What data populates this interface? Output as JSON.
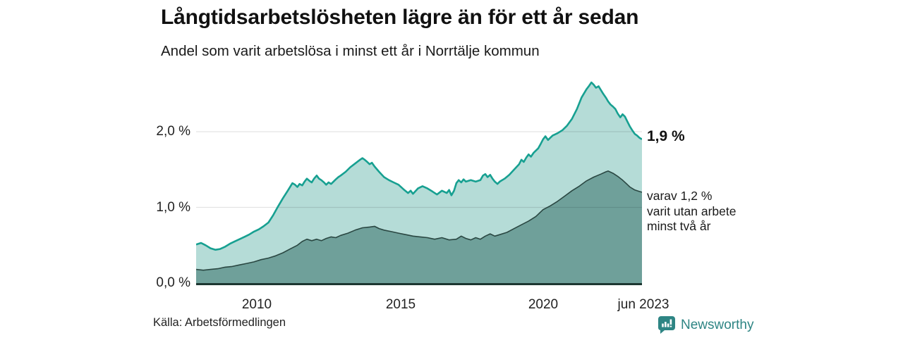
{
  "header": {
    "title": "Långtidsarbetslösheten lägre än för ett år sedan",
    "subtitle": "Andel som varit arbetslösa i minst ett år i Norrtälje kommun"
  },
  "axes": {
    "y_ticks": [
      "2,0 %",
      "1,0 %",
      "0,0 %"
    ],
    "x_ticks": [
      "2010",
      "2015",
      "2020",
      "jun 2023"
    ]
  },
  "annotations": {
    "series1_end": "1,9 %",
    "series2_end_lines": [
      "varav 1,2 %",
      "varit utan arbete",
      "minst två år"
    ]
  },
  "footer": {
    "source": "Källa: Arbetsförmedlingen",
    "brand": "Newsworthy"
  },
  "colors": {
    "series1_line": "#17a091",
    "series1_fill": "#b5dcd7",
    "series2_line": "#2a4742",
    "series2_fill": "#6fa09a",
    "grid": "rgba(0,0,0,0.11)",
    "axis_line": "#1c3631",
    "brand_teal": "#2e8584"
  },
  "chart_data": {
    "type": "area",
    "title": "Långtidsarbetslösheten lägre än för ett år sedan",
    "subtitle": "Andel som varit arbetslösa i minst ett år i Norrtälje kommun",
    "unit": "%",
    "x_range": [
      2008,
      2023.42
    ],
    "y_range": [
      0,
      2.8
    ],
    "y_gridlines": [
      1.0,
      2.0
    ],
    "x_tick_positions": [
      2010,
      2015,
      2020,
      2023.42
    ],
    "legend_position": "end-of-line-labels",
    "series": [
      {
        "name": "Andel arbetslösa minst ett år",
        "end_value": 1.9,
        "points": [
          [
            2008.0,
            0.51
          ],
          [
            2008.17,
            0.53
          ],
          [
            2008.33,
            0.5
          ],
          [
            2008.5,
            0.46
          ],
          [
            2008.67,
            0.44
          ],
          [
            2008.83,
            0.45
          ],
          [
            2009.0,
            0.48
          ],
          [
            2009.17,
            0.52
          ],
          [
            2009.33,
            0.55
          ],
          [
            2009.5,
            0.58
          ],
          [
            2009.67,
            0.61
          ],
          [
            2009.83,
            0.64
          ],
          [
            2010.0,
            0.68
          ],
          [
            2010.17,
            0.71
          ],
          [
            2010.33,
            0.75
          ],
          [
            2010.5,
            0.8
          ],
          [
            2010.67,
            0.9
          ],
          [
            2010.83,
            1.01
          ],
          [
            2011.0,
            1.12
          ],
          [
            2011.17,
            1.22
          ],
          [
            2011.33,
            1.32
          ],
          [
            2011.42,
            1.3
          ],
          [
            2011.5,
            1.27
          ],
          [
            2011.58,
            1.31
          ],
          [
            2011.67,
            1.29
          ],
          [
            2011.75,
            1.34
          ],
          [
            2011.83,
            1.38
          ],
          [
            2011.92,
            1.35
          ],
          [
            2012.0,
            1.33
          ],
          [
            2012.08,
            1.38
          ],
          [
            2012.17,
            1.42
          ],
          [
            2012.25,
            1.38
          ],
          [
            2012.33,
            1.36
          ],
          [
            2012.42,
            1.33
          ],
          [
            2012.5,
            1.3
          ],
          [
            2012.58,
            1.33
          ],
          [
            2012.67,
            1.31
          ],
          [
            2012.75,
            1.34
          ],
          [
            2012.83,
            1.37
          ],
          [
            2012.92,
            1.4
          ],
          [
            2013.0,
            1.42
          ],
          [
            2013.17,
            1.47
          ],
          [
            2013.33,
            1.53
          ],
          [
            2013.5,
            1.58
          ],
          [
            2013.67,
            1.63
          ],
          [
            2013.75,
            1.65
          ],
          [
            2013.83,
            1.63
          ],
          [
            2013.92,
            1.6
          ],
          [
            2014.0,
            1.57
          ],
          [
            2014.08,
            1.59
          ],
          [
            2014.17,
            1.54
          ],
          [
            2014.33,
            1.47
          ],
          [
            2014.5,
            1.4
          ],
          [
            2014.67,
            1.36
          ],
          [
            2014.83,
            1.33
          ],
          [
            2015.0,
            1.3
          ],
          [
            2015.17,
            1.24
          ],
          [
            2015.33,
            1.19
          ],
          [
            2015.42,
            1.22
          ],
          [
            2015.5,
            1.18
          ],
          [
            2015.67,
            1.25
          ],
          [
            2015.83,
            1.28
          ],
          [
            2016.0,
            1.25
          ],
          [
            2016.17,
            1.21
          ],
          [
            2016.33,
            1.17
          ],
          [
            2016.5,
            1.22
          ],
          [
            2016.67,
            1.19
          ],
          [
            2016.75,
            1.23
          ],
          [
            2016.83,
            1.16
          ],
          [
            2016.92,
            1.22
          ],
          [
            2017.0,
            1.32
          ],
          [
            2017.08,
            1.36
          ],
          [
            2017.17,
            1.33
          ],
          [
            2017.25,
            1.37
          ],
          [
            2017.33,
            1.34
          ],
          [
            2017.5,
            1.36
          ],
          [
            2017.67,
            1.34
          ],
          [
            2017.83,
            1.36
          ],
          [
            2017.92,
            1.42
          ],
          [
            2018.0,
            1.44
          ],
          [
            2018.08,
            1.4
          ],
          [
            2018.17,
            1.43
          ],
          [
            2018.25,
            1.38
          ],
          [
            2018.33,
            1.34
          ],
          [
            2018.42,
            1.31
          ],
          [
            2018.5,
            1.34
          ],
          [
            2018.67,
            1.38
          ],
          [
            2018.83,
            1.43
          ],
          [
            2019.0,
            1.5
          ],
          [
            2019.17,
            1.57
          ],
          [
            2019.25,
            1.63
          ],
          [
            2019.33,
            1.6
          ],
          [
            2019.42,
            1.66
          ],
          [
            2019.5,
            1.7
          ],
          [
            2019.58,
            1.67
          ],
          [
            2019.67,
            1.72
          ],
          [
            2019.83,
            1.78
          ],
          [
            2019.92,
            1.84
          ],
          [
            2020.0,
            1.9
          ],
          [
            2020.08,
            1.94
          ],
          [
            2020.17,
            1.89
          ],
          [
            2020.25,
            1.92
          ],
          [
            2020.33,
            1.95
          ],
          [
            2020.5,
            1.98
          ],
          [
            2020.67,
            2.02
          ],
          [
            2020.83,
            2.08
          ],
          [
            2021.0,
            2.17
          ],
          [
            2021.17,
            2.3
          ],
          [
            2021.33,
            2.45
          ],
          [
            2021.5,
            2.56
          ],
          [
            2021.58,
            2.6
          ],
          [
            2021.67,
            2.65
          ],
          [
            2021.75,
            2.62
          ],
          [
            2021.83,
            2.58
          ],
          [
            2021.92,
            2.6
          ],
          [
            2022.0,
            2.55
          ],
          [
            2022.08,
            2.5
          ],
          [
            2022.17,
            2.45
          ],
          [
            2022.25,
            2.4
          ],
          [
            2022.33,
            2.36
          ],
          [
            2022.42,
            2.33
          ],
          [
            2022.5,
            2.3
          ],
          [
            2022.58,
            2.24
          ],
          [
            2022.67,
            2.19
          ],
          [
            2022.75,
            2.23
          ],
          [
            2022.83,
            2.2
          ],
          [
            2022.92,
            2.13
          ],
          [
            2023.0,
            2.07
          ],
          [
            2023.08,
            2.02
          ],
          [
            2023.17,
            1.97
          ],
          [
            2023.25,
            1.95
          ],
          [
            2023.33,
            1.92
          ],
          [
            2023.42,
            1.9
          ]
        ]
      },
      {
        "name": "varav utan arbete minst två år",
        "end_value": 1.2,
        "points": [
          [
            2008.0,
            0.18
          ],
          [
            2008.25,
            0.17
          ],
          [
            2008.5,
            0.18
          ],
          [
            2008.75,
            0.19
          ],
          [
            2009.0,
            0.21
          ],
          [
            2009.25,
            0.22
          ],
          [
            2009.5,
            0.24
          ],
          [
            2009.75,
            0.26
          ],
          [
            2010.0,
            0.28
          ],
          [
            2010.25,
            0.31
          ],
          [
            2010.5,
            0.33
          ],
          [
            2010.75,
            0.36
          ],
          [
            2011.0,
            0.4
          ],
          [
            2011.25,
            0.45
          ],
          [
            2011.5,
            0.5
          ],
          [
            2011.67,
            0.55
          ],
          [
            2011.83,
            0.58
          ],
          [
            2012.0,
            0.56
          ],
          [
            2012.17,
            0.58
          ],
          [
            2012.33,
            0.56
          ],
          [
            2012.5,
            0.59
          ],
          [
            2012.67,
            0.61
          ],
          [
            2012.83,
            0.6
          ],
          [
            2013.0,
            0.63
          ],
          [
            2013.25,
            0.66
          ],
          [
            2013.5,
            0.7
          ],
          [
            2013.75,
            0.73
          ],
          [
            2014.0,
            0.74
          ],
          [
            2014.17,
            0.75
          ],
          [
            2014.33,
            0.72
          ],
          [
            2014.5,
            0.7
          ],
          [
            2014.75,
            0.68
          ],
          [
            2015.0,
            0.66
          ],
          [
            2015.25,
            0.64
          ],
          [
            2015.5,
            0.62
          ],
          [
            2015.75,
            0.61
          ],
          [
            2016.0,
            0.6
          ],
          [
            2016.25,
            0.58
          ],
          [
            2016.5,
            0.6
          ],
          [
            2016.75,
            0.57
          ],
          [
            2017.0,
            0.58
          ],
          [
            2017.17,
            0.62
          ],
          [
            2017.33,
            0.59
          ],
          [
            2017.5,
            0.57
          ],
          [
            2017.67,
            0.6
          ],
          [
            2017.83,
            0.58
          ],
          [
            2018.0,
            0.62
          ],
          [
            2018.17,
            0.65
          ],
          [
            2018.33,
            0.62
          ],
          [
            2018.5,
            0.64
          ],
          [
            2018.75,
            0.67
          ],
          [
            2019.0,
            0.72
          ],
          [
            2019.25,
            0.77
          ],
          [
            2019.5,
            0.82
          ],
          [
            2019.75,
            0.88
          ],
          [
            2020.0,
            0.97
          ],
          [
            2020.25,
            1.02
          ],
          [
            2020.5,
            1.08
          ],
          [
            2020.75,
            1.15
          ],
          [
            2021.0,
            1.22
          ],
          [
            2021.25,
            1.28
          ],
          [
            2021.5,
            1.35
          ],
          [
            2021.75,
            1.4
          ],
          [
            2022.0,
            1.44
          ],
          [
            2022.17,
            1.47
          ],
          [
            2022.25,
            1.48
          ],
          [
            2022.42,
            1.45
          ],
          [
            2022.58,
            1.41
          ],
          [
            2022.75,
            1.36
          ],
          [
            2022.92,
            1.3
          ],
          [
            2023.0,
            1.27
          ],
          [
            2023.17,
            1.23
          ],
          [
            2023.33,
            1.21
          ],
          [
            2023.42,
            1.2
          ]
        ]
      }
    ]
  }
}
